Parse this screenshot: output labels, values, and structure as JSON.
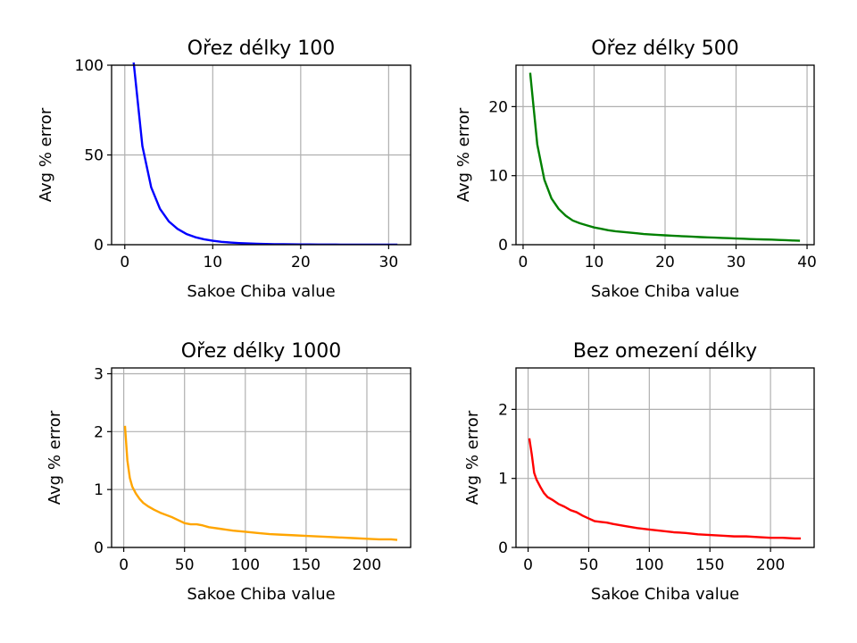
{
  "chart_data": [
    {
      "type": "line",
      "title": "Ořez délky 100",
      "xlabel": "Sakoe Chiba value",
      "ylabel": "Avg % error",
      "xlim": [
        -1.5,
        32.5
      ],
      "ylim": [
        0,
        100
      ],
      "xticks": [
        0,
        10,
        20,
        30
      ],
      "yticks": [
        0,
        50,
        100
      ],
      "grid": true,
      "color": "#0000ff",
      "x": [
        1,
        2,
        3,
        4,
        5,
        6,
        7,
        8,
        9,
        10,
        11,
        12,
        13,
        14,
        15,
        16,
        17,
        18,
        19,
        20,
        21,
        22,
        23,
        24,
        25,
        26,
        27,
        28,
        29,
        30,
        31
      ],
      "y": [
        102,
        55,
        32,
        20,
        13,
        8.8,
        6.0,
        4.2,
        3.0,
        2.2,
        1.6,
        1.2,
        0.9,
        0.7,
        0.5,
        0.4,
        0.3,
        0.25,
        0.2,
        0.15,
        0.12,
        0.1,
        0.08,
        0.06,
        0.05,
        0.04,
        0.03,
        0.03,
        0.02,
        0.02,
        0.01
      ]
    },
    {
      "type": "line",
      "title": "Ořez délky 500",
      "xlabel": "Sakoe Chiba value",
      "ylabel": "Avg % error",
      "xlim": [
        -1,
        41
      ],
      "ylim": [
        0,
        26
      ],
      "xticks": [
        0,
        10,
        20,
        30,
        40
      ],
      "yticks": [
        0,
        10,
        20
      ],
      "grid": true,
      "color": "#008000",
      "x": [
        1,
        2,
        3,
        4,
        5,
        6,
        7,
        8,
        9,
        10,
        11,
        12,
        13,
        14,
        15,
        16,
        17,
        18,
        19,
        20,
        21,
        22,
        23,
        24,
        25,
        26,
        27,
        28,
        29,
        30,
        31,
        32,
        33,
        34,
        35,
        36,
        37,
        38,
        39
      ],
      "y": [
        24.9,
        14.5,
        9.4,
        6.7,
        5.2,
        4.2,
        3.5,
        3.1,
        2.8,
        2.5,
        2.3,
        2.1,
        1.95,
        1.85,
        1.75,
        1.65,
        1.55,
        1.48,
        1.42,
        1.36,
        1.3,
        1.25,
        1.2,
        1.15,
        1.1,
        1.06,
        1.02,
        0.98,
        0.94,
        0.9,
        0.86,
        0.82,
        0.79,
        0.76,
        0.73,
        0.69,
        0.65,
        0.61,
        0.58
      ]
    },
    {
      "type": "line",
      "title": "Ořez délky 1000",
      "xlabel": "Sakoe Chiba value",
      "ylabel": "Avg % error",
      "xlim": [
        -10,
        236
      ],
      "ylim": [
        0,
        3.1
      ],
      "xticks": [
        0,
        50,
        100,
        150,
        200
      ],
      "yticks": [
        0,
        1,
        2,
        3
      ],
      "grid": true,
      "color": "#ffa500",
      "x": [
        1,
        3,
        5,
        7,
        10,
        13,
        16,
        20,
        25,
        30,
        35,
        40,
        45,
        50,
        55,
        60,
        65,
        70,
        80,
        90,
        100,
        110,
        120,
        130,
        140,
        150,
        160,
        170,
        180,
        190,
        200,
        210,
        220,
        225
      ],
      "y": [
        2.1,
        1.5,
        1.2,
        1.05,
        0.93,
        0.84,
        0.77,
        0.71,
        0.65,
        0.6,
        0.56,
        0.52,
        0.47,
        0.42,
        0.4,
        0.4,
        0.38,
        0.35,
        0.32,
        0.29,
        0.27,
        0.25,
        0.23,
        0.22,
        0.21,
        0.2,
        0.19,
        0.18,
        0.17,
        0.16,
        0.15,
        0.14,
        0.14,
        0.13
      ]
    },
    {
      "type": "line",
      "title": "Bez omezení délky",
      "xlabel": "Sakoe Chiba value",
      "ylabel": "Avg % error",
      "xlim": [
        -10,
        236
      ],
      "ylim": [
        0,
        2.6
      ],
      "xticks": [
        0,
        50,
        100,
        150,
        200
      ],
      "yticks": [
        0,
        1,
        2
      ],
      "grid": true,
      "color": "#ff0000",
      "x": [
        1,
        3,
        5,
        7,
        10,
        13,
        16,
        20,
        25,
        30,
        35,
        40,
        45,
        50,
        55,
        60,
        65,
        70,
        80,
        90,
        100,
        110,
        120,
        130,
        140,
        150,
        160,
        170,
        180,
        190,
        200,
        210,
        220,
        225
      ],
      "y": [
        1.58,
        1.35,
        1.08,
        0.98,
        0.88,
        0.79,
        0.73,
        0.69,
        0.63,
        0.59,
        0.54,
        0.51,
        0.46,
        0.42,
        0.38,
        0.37,
        0.36,
        0.34,
        0.31,
        0.28,
        0.26,
        0.24,
        0.22,
        0.21,
        0.19,
        0.18,
        0.17,
        0.16,
        0.16,
        0.15,
        0.14,
        0.14,
        0.13,
        0.13
      ]
    }
  ]
}
